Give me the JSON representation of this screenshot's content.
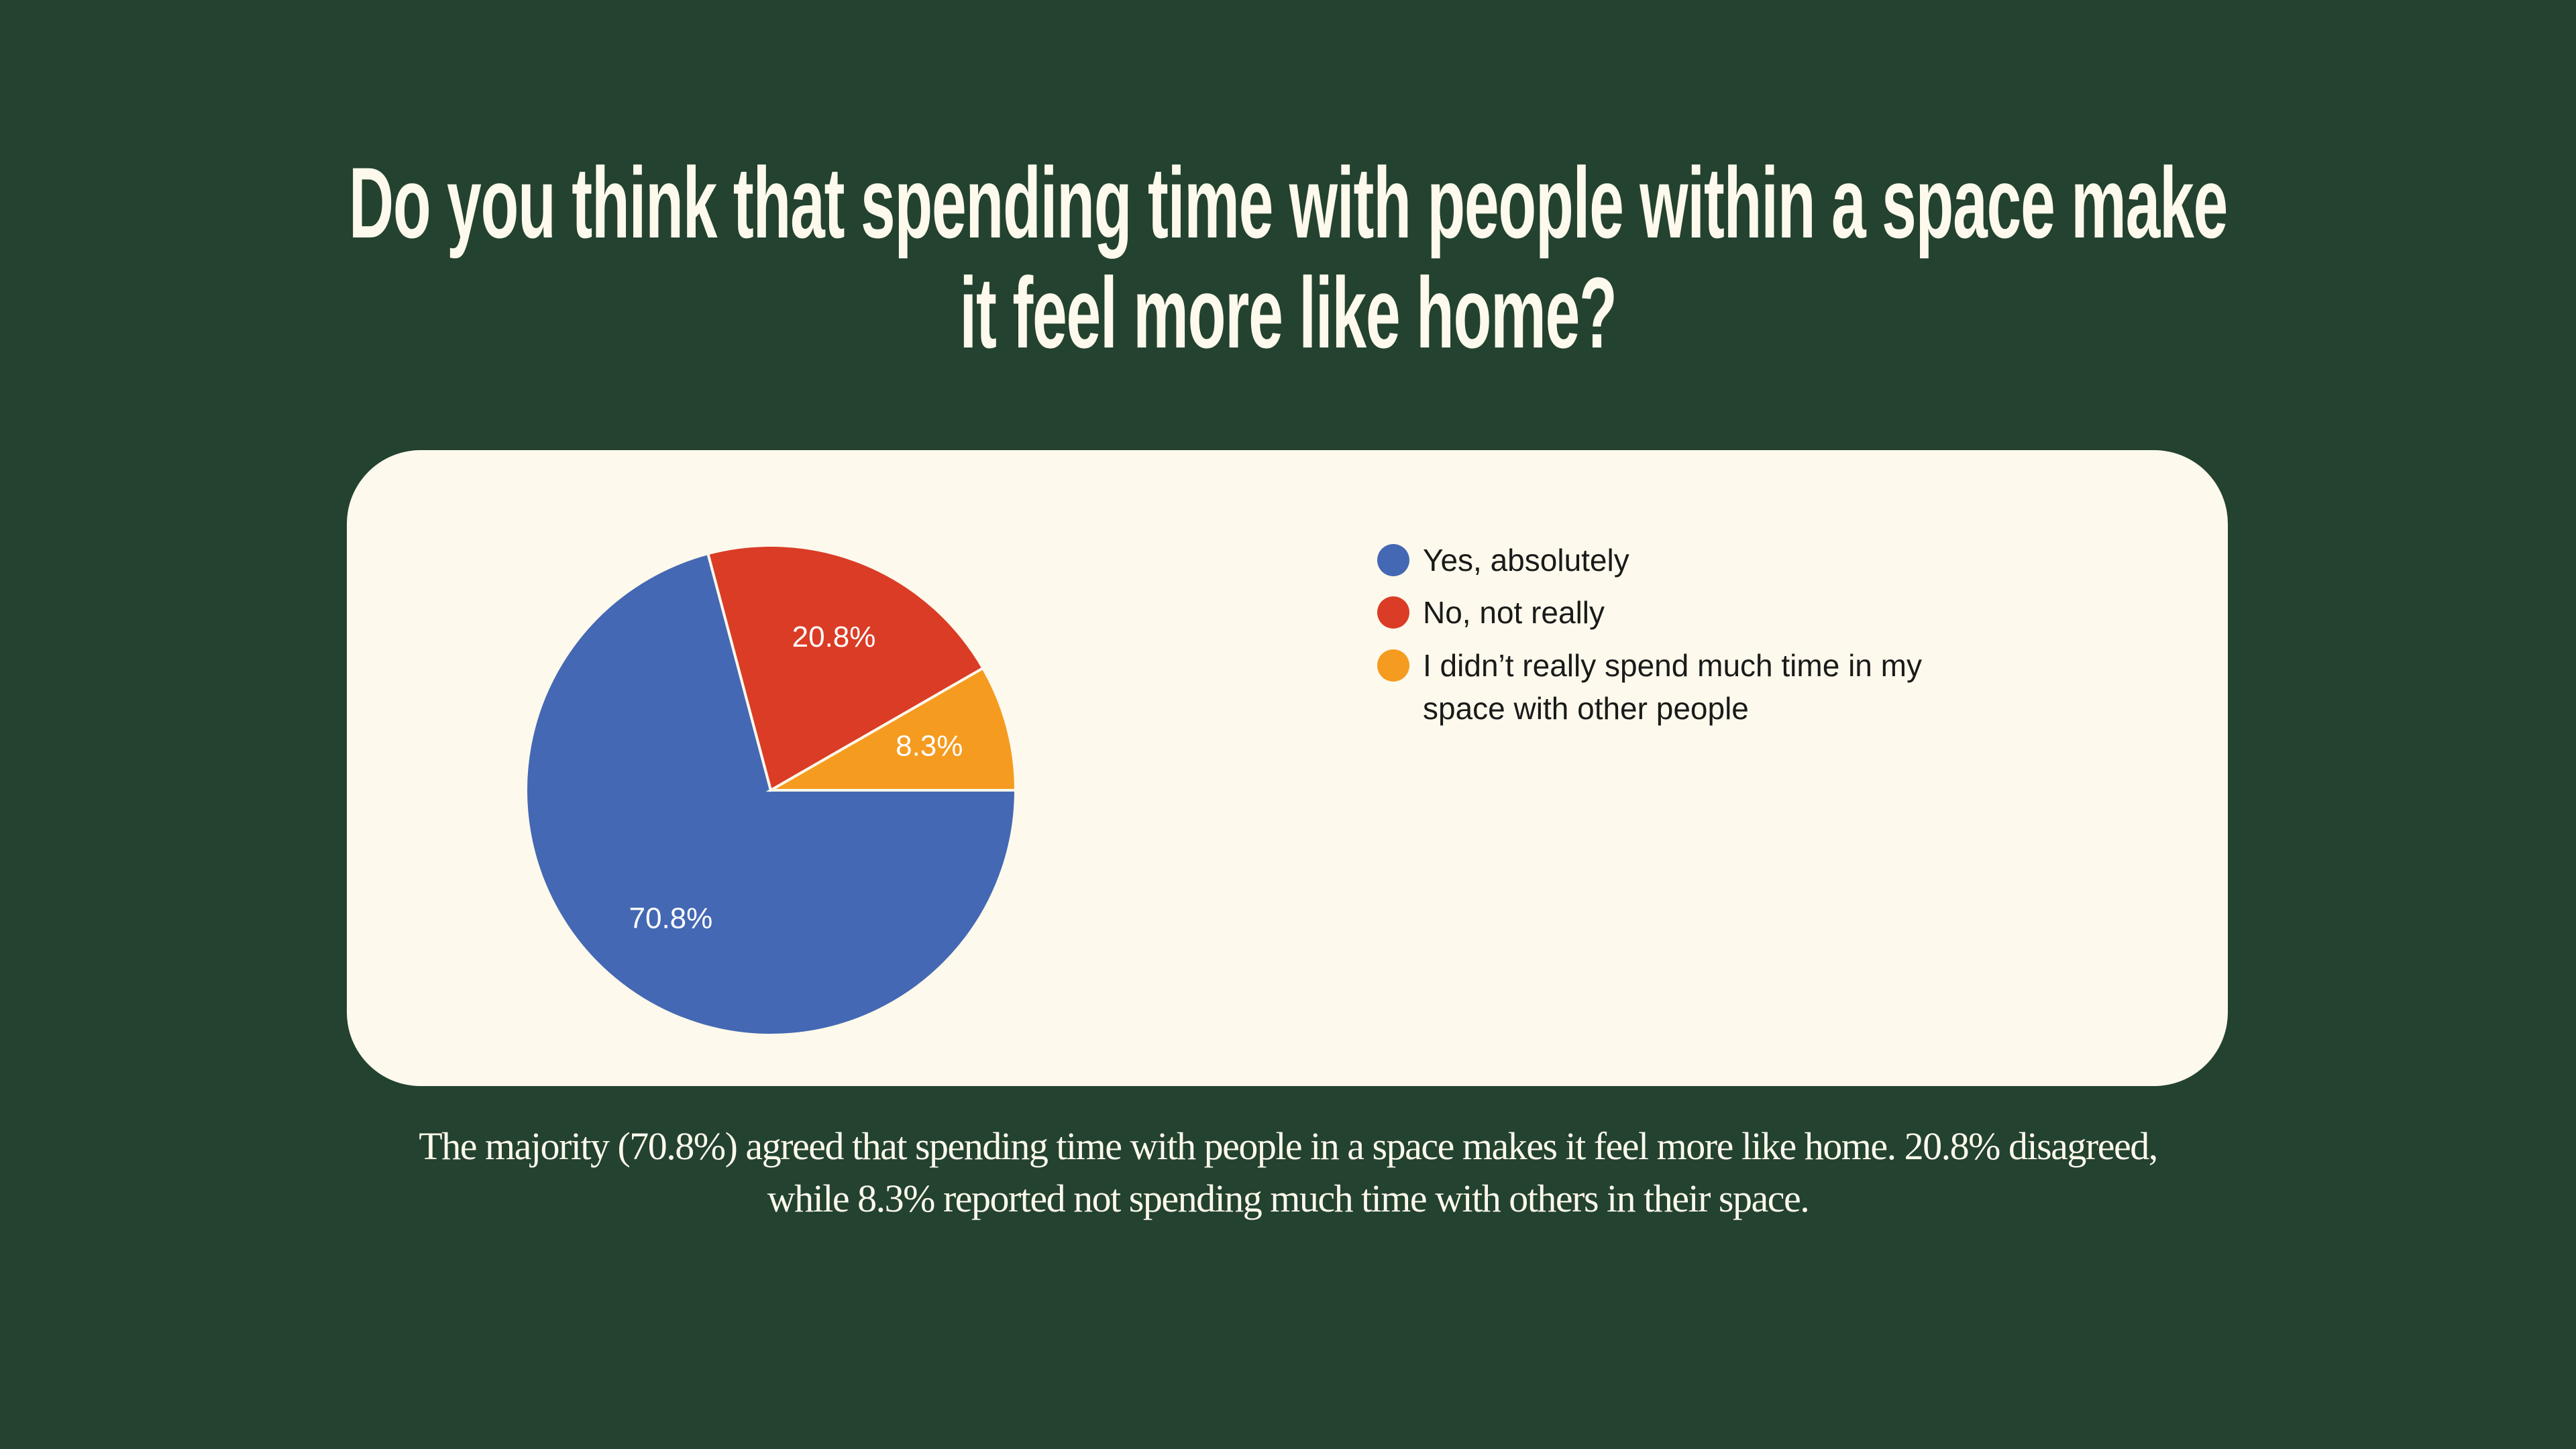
{
  "chart_data": {
    "type": "pie",
    "title": "Do you think that spending time with people within a space make it feel more like home?",
    "categories": [
      "Yes, absolutely",
      "No, not really",
      "I didn’t really spend much time in my space with other people"
    ],
    "values": [
      70.8,
      20.8,
      8.3
    ],
    "value_labels": [
      "70.8%",
      "20.8%",
      "8.3%"
    ],
    "colors": [
      "#4468b3",
      "#da3c26",
      "#f59b1f"
    ],
    "caption": "The majority (70.8%) agreed that spending time with people in a space makes it feel more like home. 20.8% disagreed, while 8.3% reported not spending much time with others in their space."
  }
}
